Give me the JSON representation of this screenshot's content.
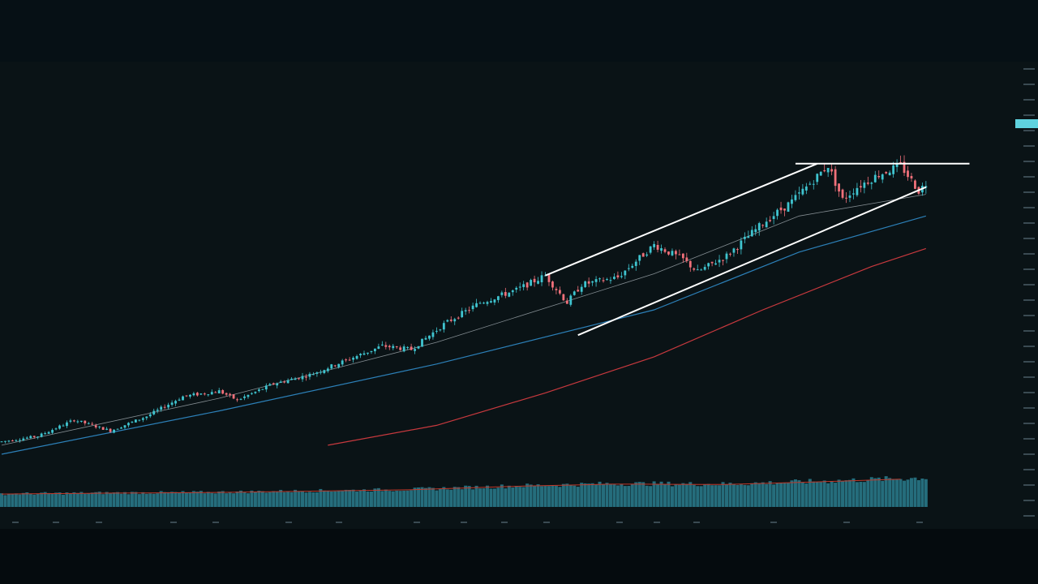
{
  "colors": {
    "background": "#0a1316",
    "bull": "#3fc4cf",
    "bear": "#f0707a",
    "ma_fast": "#8b9499",
    "ma_mid": "#2e86c1",
    "ma_slow": "#d23b40",
    "volume": "#2a7e8e",
    "volume_ma": "#c0392b",
    "trendline": "#ffffff"
  },
  "chart_data": {
    "type": "candlestick",
    "title": "",
    "xlabel": "",
    "ylabel": "",
    "price_scale": "log",
    "ylim": [
      0,
      100
    ],
    "grid": false,
    "legend": "none",
    "axis_labels_legible": false,
    "candles_approx": [
      {
        "i": 0,
        "close": 3.5
      },
      {
        "i": 10,
        "close": 5.0
      },
      {
        "i": 20,
        "close": 9.5
      },
      {
        "i": 25,
        "close": 8.0
      },
      {
        "i": 30,
        "close": 6.5
      },
      {
        "i": 40,
        "close": 10.5
      },
      {
        "i": 50,
        "close": 16.0
      },
      {
        "i": 60,
        "close": 17.5
      },
      {
        "i": 65,
        "close": 15.0
      },
      {
        "i": 75,
        "close": 19.5
      },
      {
        "i": 85,
        "close": 22.0
      },
      {
        "i": 95,
        "close": 26.0
      },
      {
        "i": 105,
        "close": 30.0
      },
      {
        "i": 113,
        "close": 29.0
      },
      {
        "i": 122,
        "close": 36.0
      },
      {
        "i": 132,
        "close": 42.0
      },
      {
        "i": 142,
        "close": 45.5
      },
      {
        "i": 150,
        "close": 49.5
      },
      {
        "i": 156,
        "close": 42.0
      },
      {
        "i": 160,
        "close": 47.0
      },
      {
        "i": 170,
        "close": 49.0
      },
      {
        "i": 180,
        "close": 58.0
      },
      {
        "i": 188,
        "close": 54.0
      },
      {
        "i": 192,
        "close": 50.5
      },
      {
        "i": 200,
        "close": 55.0
      },
      {
        "i": 210,
        "close": 64.0
      },
      {
        "i": 218,
        "close": 70.0
      },
      {
        "i": 224,
        "close": 76.0
      },
      {
        "i": 228,
        "close": 80.0
      },
      {
        "i": 232,
        "close": 70.5
      },
      {
        "i": 236,
        "close": 74.0
      },
      {
        "i": 242,
        "close": 77.5
      },
      {
        "i": 248,
        "close": 80.0
      },
      {
        "i": 253,
        "close": 73.0
      },
      {
        "i": 255,
        "close": 75.0
      }
    ],
    "moving_averages": [
      {
        "name": "",
        "color_key": "ma_fast",
        "points": [
          [
            0,
            2.5
          ],
          [
            60,
            15.5
          ],
          [
            120,
            31
          ],
          [
            180,
            50
          ],
          [
            220,
            66
          ],
          [
            255,
            72
          ]
        ]
      },
      {
        "name": "",
        "color_key": "ma_mid",
        "points": [
          [
            0,
            0
          ],
          [
            60,
            12
          ],
          [
            120,
            25
          ],
          [
            180,
            40
          ],
          [
            220,
            56
          ],
          [
            255,
            66
          ]
        ]
      },
      {
        "name": "",
        "color_key": "ma_slow",
        "points": [
          [
            90,
            2.5
          ],
          [
            120,
            8
          ],
          [
            150,
            17
          ],
          [
            180,
            27
          ],
          [
            210,
            40
          ],
          [
            240,
            52
          ],
          [
            255,
            57
          ]
        ]
      }
    ],
    "trendlines": [
      {
        "kind": "channel-top",
        "from": [
          150,
          49.5
        ],
        "to": [
          225,
          80.5
        ]
      },
      {
        "kind": "channel-bottom",
        "from": [
          159,
          33
        ],
        "to": [
          255,
          74
        ]
      },
      {
        "kind": "horizontal-resistance",
        "from": [
          219,
          80.5
        ],
        "to": [
          267,
          80.5
        ]
      }
    ],
    "volume_relative": [
      0.45,
      0.48,
      0.5,
      0.55,
      0.6,
      0.72,
      0.8,
      0.78,
      0.88,
      1.0
    ]
  }
}
